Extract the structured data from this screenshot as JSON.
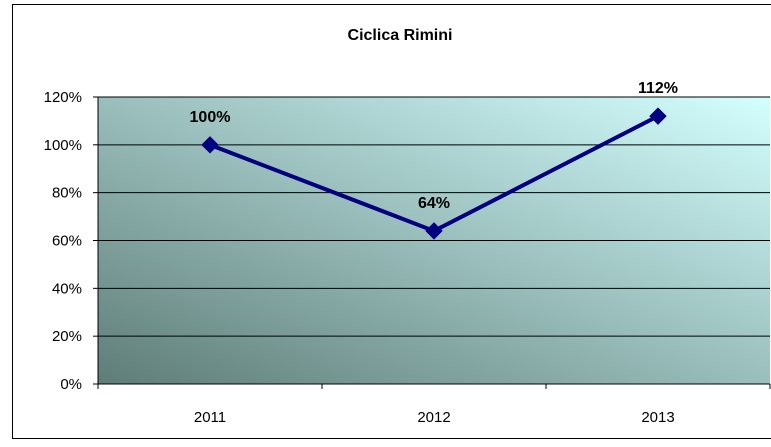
{
  "chart_data": {
    "type": "line",
    "title": "Ciclica Rimini",
    "xlabel": "",
    "ylabel": "",
    "categories": [
      "2011",
      "2012",
      "2013"
    ],
    "series": [
      {
        "values": [
          100,
          64,
          112
        ],
        "data_labels": [
          "100%",
          "64%",
          "112%"
        ],
        "color": "#000080",
        "marker": "diamond"
      }
    ],
    "ylim": [
      0,
      120
    ],
    "y_ticks": [
      0,
      20,
      40,
      60,
      80,
      100,
      120
    ],
    "y_tick_labels": [
      "0%",
      "20%",
      "40%",
      "60%",
      "80%",
      "100%",
      "120%"
    ],
    "grid": true,
    "legend": "none"
  },
  "colors": {
    "plot_gradient_start": "#5f7d78",
    "plot_gradient_end": "#d4ffff",
    "series_line": "#000080",
    "gridline": "#000000"
  }
}
